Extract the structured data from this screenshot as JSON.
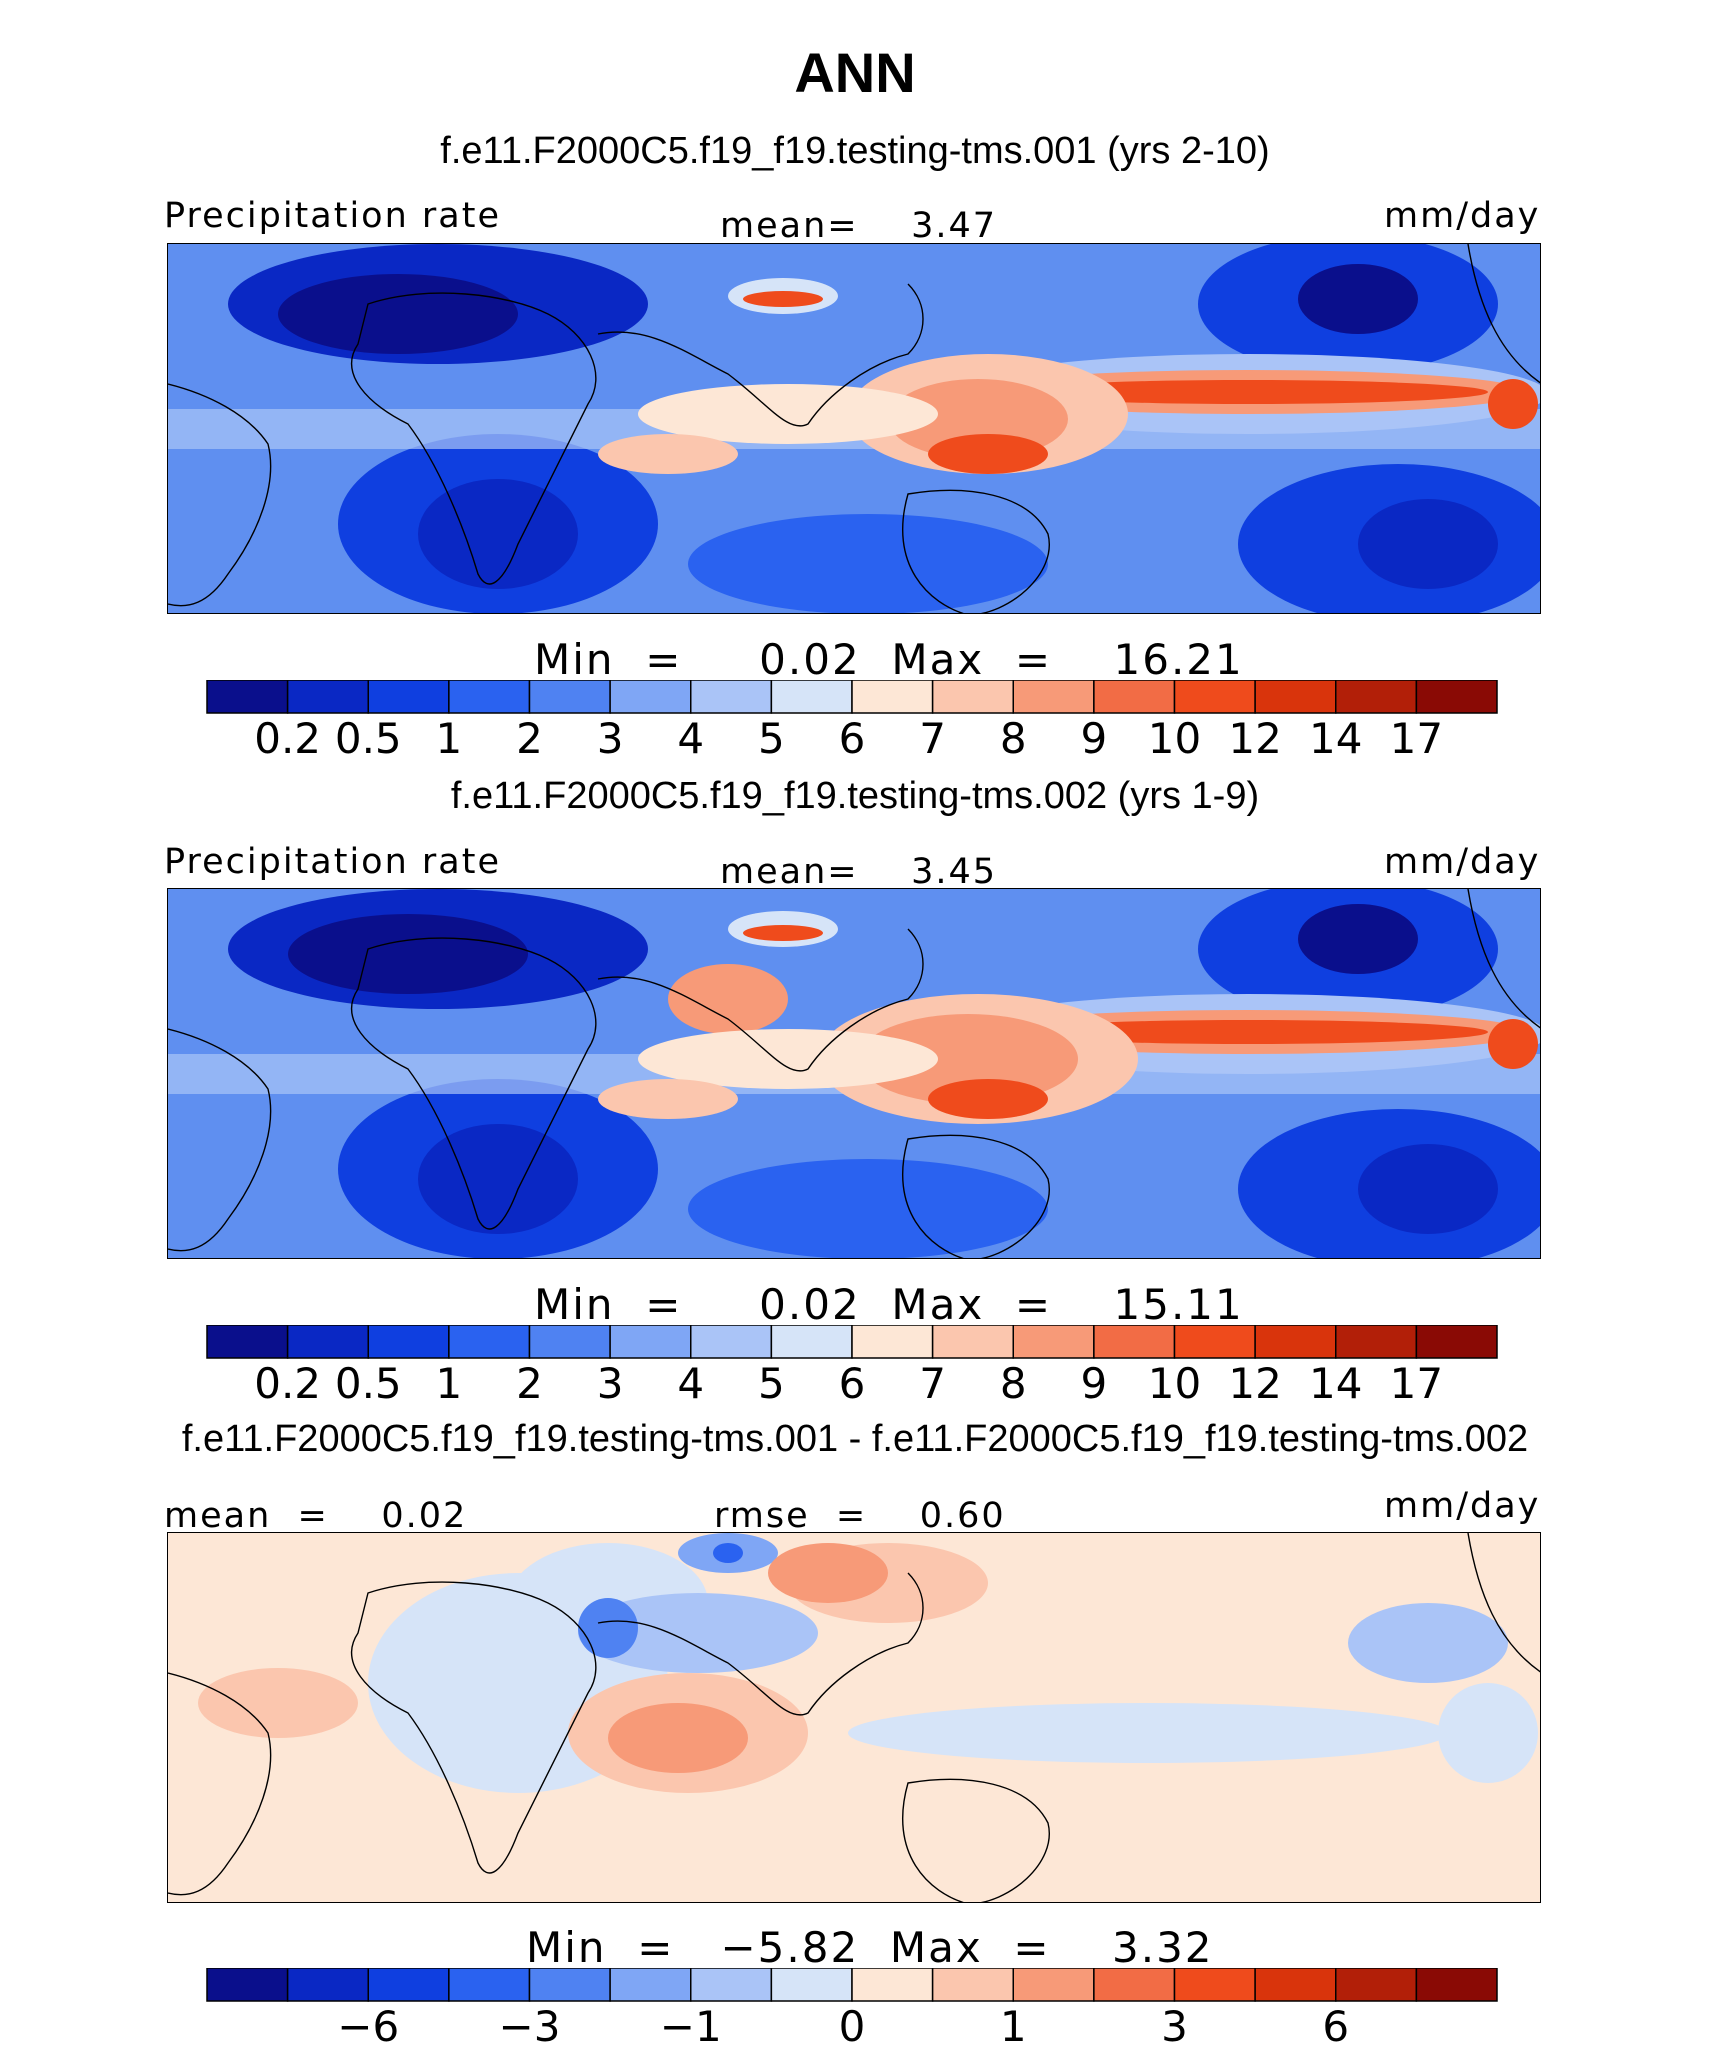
{
  "figure": {
    "title": "ANN",
    "colors": {
      "precip": [
        "#0a0f8c",
        "#0a28c4",
        "#0f3fe0",
        "#2a62f0",
        "#4f82f2",
        "#7fa6f5",
        "#aac4f7",
        "#d6e4f8",
        "#fde7d6",
        "#fbc6ae",
        "#f79a78",
        "#f26c45",
        "#ef4b1c",
        "#d9340c",
        "#b21f08",
        "#8a0a05"
      ],
      "diff": [
        "#0a0f8c",
        "#0a28c4",
        "#0f3fe0",
        "#2a62f0",
        "#4f82f2",
        "#7fa6f5",
        "#aac4f7",
        "#d6e4f8",
        "#fde7d6",
        "#fbc6ae",
        "#f79a78",
        "#f26c45",
        "#ef4b1c",
        "#d9340c",
        "#b21f08",
        "#8a0a05"
      ]
    }
  },
  "panels": [
    {
      "case_title": "f.e11.F2000C5.f19_f19.testing-tms.001 (yrs 2-10)",
      "left_label": "Precipitation rate",
      "center_label": "mean=    3.47",
      "right_label": "mm/day",
      "minmax": "Min  =     0.02  Max  =    16.21"
    },
    {
      "case_title": "f.e11.F2000C5.f19_f19.testing-tms.002 (yrs 1-9)",
      "left_label": "Precipitation rate",
      "center_label": "mean=    3.45",
      "right_label": "mm/day",
      "minmax": "Min  =     0.02  Max  =    15.11"
    },
    {
      "case_title": "f.e11.F2000C5.f19_f19.testing-tms.001 - f.e11.F2000C5.f19_f19.testing-tms.002",
      "left_label": "mean  =    0.02",
      "center_label": "rmse  =    0.60",
      "right_label": "mm/day",
      "minmax": "Min  =   −5.82  Max  =    3.32"
    }
  ],
  "chart_data": [
    {
      "type": "heatmap",
      "title": "f.e11.F2000C5.f19_f19.testing-tms.001 (yrs 2-10)",
      "variable": "Precipitation rate",
      "units": "mm/day",
      "mean": 3.47,
      "min": 0.02,
      "max": 16.21,
      "colorbar_levels": [
        0.2,
        0.5,
        1,
        2,
        3,
        4,
        5,
        6,
        7,
        8,
        9,
        10,
        12,
        14,
        17
      ],
      "colorbar_tick_labels": [
        "0.2",
        "0.5",
        "1",
        "2",
        "3",
        "4",
        "5",
        "6",
        "7",
        "8",
        "9",
        "10",
        "12",
        "14",
        "17"
      ]
    },
    {
      "type": "heatmap",
      "title": "f.e11.F2000C5.f19_f19.testing-tms.002 (yrs 1-9)",
      "variable": "Precipitation rate",
      "units": "mm/day",
      "mean": 3.45,
      "min": 0.02,
      "max": 15.11,
      "colorbar_levels": [
        0.2,
        0.5,
        1,
        2,
        3,
        4,
        5,
        6,
        7,
        8,
        9,
        10,
        12,
        14,
        17
      ],
      "colorbar_tick_labels": [
        "0.2",
        "0.5",
        "1",
        "2",
        "3",
        "4",
        "5",
        "6",
        "7",
        "8",
        "9",
        "10",
        "12",
        "14",
        "17"
      ]
    },
    {
      "type": "heatmap",
      "title": "f.e11.F2000C5.f19_f19.testing-tms.001 - f.e11.F2000C5.f19_f19.testing-tms.002",
      "units": "mm/day",
      "mean": 0.02,
      "rmse": 0.6,
      "min": -5.82,
      "max": 3.32,
      "colorbar_tick_labels": [
        "−6",
        "",
        "−3",
        "",
        "−1",
        "",
        "0",
        "",
        "1",
        "",
        "3",
        "",
        "6",
        ""
      ]
    }
  ]
}
